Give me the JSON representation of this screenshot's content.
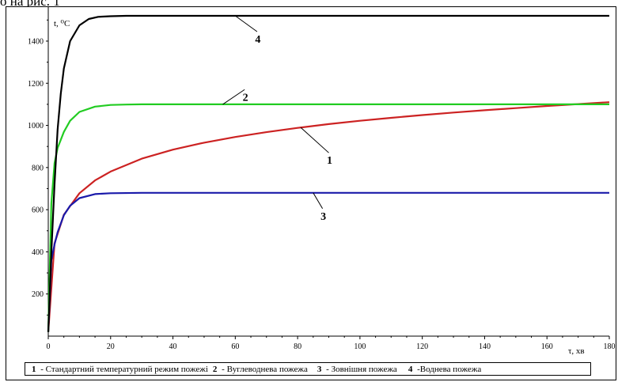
{
  "fragment_text": "о на рис. 1",
  "chart_data": {
    "type": "line",
    "xlabel": "τ, хв",
    "ylabel": "t, ⁰C",
    "xlim": [
      0,
      180
    ],
    "ylim": [
      0,
      1550
    ],
    "x_ticks": [
      0,
      20,
      40,
      60,
      80,
      100,
      120,
      140,
      160,
      180
    ],
    "y_ticks": [
      200,
      400,
      600,
      800,
      1000,
      1200,
      1400
    ],
    "grid": false,
    "legend_position": "bottom",
    "series": [
      {
        "name": "Стандартний температурний режим пожежі",
        "label_number": "1",
        "color": "#cc2222",
        "x": [
          0,
          2,
          5,
          10,
          15,
          20,
          30,
          40,
          50,
          60,
          70,
          80,
          90,
          100,
          110,
          120,
          130,
          140,
          150,
          160,
          170,
          180
        ],
        "y": [
          20,
          440,
          576,
          678,
          739,
          781,
          842,
          885,
          918,
          945,
          968,
          988,
          1006,
          1022,
          1036,
          1049,
          1061,
          1072,
          1082,
          1092,
          1101,
          1110
        ]
      },
      {
        "name": "Вуглеводнева пожежа",
        "label_number": "2",
        "color": "#22cc22",
        "x": [
          0,
          1,
          2,
          3,
          5,
          7,
          10,
          15,
          20,
          25,
          30,
          60,
          100,
          140,
          180
        ],
        "y": [
          20,
          630,
          820,
          893,
          969,
          1022,
          1064,
          1089,
          1097,
          1099,
          1100,
          1100,
          1100,
          1100,
          1100
        ]
      },
      {
        "name": "Зовнішня пожежа",
        "label_number": "3",
        "color": "#1a1aaa",
        "x": [
          0,
          1,
          2,
          3,
          5,
          7,
          10,
          15,
          20,
          30,
          60,
          100,
          140,
          180
        ],
        "y": [
          20,
          360,
          435,
          493,
          574,
          619,
          655,
          674,
          678,
          680,
          680,
          680,
          680,
          680
        ]
      },
      {
        "name": "Воднева пожежа",
        "label_number": "4",
        "color": "#000000",
        "x": [
          0,
          1,
          2,
          3,
          4,
          5,
          7,
          10,
          13,
          16,
          20,
          25,
          40,
          80,
          120,
          180
        ],
        "y": [
          20,
          400,
          720,
          980,
          1150,
          1270,
          1400,
          1475,
          1505,
          1515,
          1518,
          1520,
          1520,
          1520,
          1520,
          1520
        ]
      }
    ],
    "curve_labels": [
      {
        "text": "1",
        "at_x": 81,
        "at_y": 990,
        "to_x": 90,
        "to_y": 870
      },
      {
        "text": "2",
        "at_x": 56,
        "at_y": 1100,
        "to_x": 63,
        "to_y": 1170
      },
      {
        "text": "3",
        "at_x": 85,
        "at_y": 680,
        "to_x": 88,
        "to_y": 605
      },
      {
        "text": "4",
        "at_x": 60,
        "at_y": 1520,
        "to_x": 67,
        "to_y": 1445
      }
    ]
  },
  "legend": [
    {
      "num": "1",
      "sep": " - ",
      "text": "Стандартний температурний режим пожежі"
    },
    {
      "num": "2",
      "sep": " -  ",
      "text": "Вуглеводнева пожежа"
    },
    {
      "num": "3",
      "sep": " - ",
      "text": "Зовнішня пожежа"
    },
    {
      "num": "4",
      "sep": " -",
      "text": "Воднева пожежа"
    }
  ]
}
